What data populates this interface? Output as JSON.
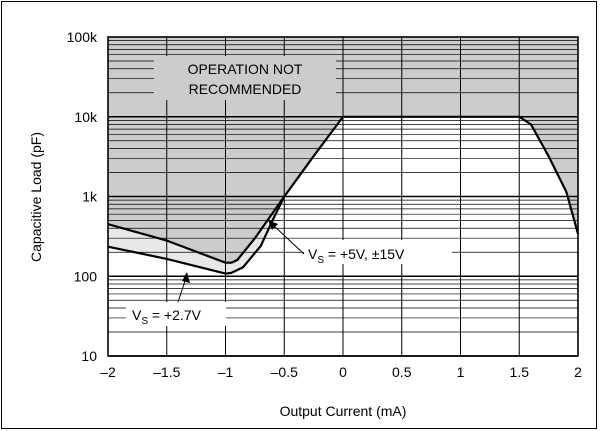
{
  "chart_data": {
    "type": "line",
    "xlabel": "Output Current (mA)",
    "ylabel": "Capacitive Load (pF)",
    "xlim": [
      -2,
      2
    ],
    "ylim": [
      10,
      100000
    ],
    "yscale": "log",
    "grid": true,
    "xticks": [
      -2,
      -1.5,
      -1,
      -0.5,
      0,
      0.5,
      1,
      1.5,
      2
    ],
    "xtick_labels": [
      "–2",
      "–1.5",
      "–1",
      "–0.5",
      "0",
      "0.5",
      "1",
      "1.5",
      "2"
    ],
    "yticks": [
      10,
      100,
      1000,
      10000,
      100000
    ],
    "ytick_labels": [
      "10",
      "100",
      "1k",
      "10k",
      "100k"
    ],
    "region_label_line1": "OPERATION NOT",
    "region_label_line2": "RECOMMENDED",
    "series": [
      {
        "name": "V_S = +5V, ±15V",
        "label_prefix": "V",
        "label_sub": "S",
        "label_suffix": " = +5V, ±15V",
        "points": [
          [
            -2,
            450
          ],
          [
            -1.5,
            280
          ],
          [
            -1.0,
            148
          ],
          [
            -0.95,
            148
          ],
          [
            -0.9,
            160
          ],
          [
            -0.75,
            300
          ],
          [
            -0.5,
            1000
          ],
          [
            -0.25,
            3200
          ],
          [
            0,
            10000
          ],
          [
            1.5,
            10000
          ],
          [
            1.6,
            8000
          ],
          [
            1.75,
            3200
          ],
          [
            1.9,
            1150
          ],
          [
            2,
            340
          ]
        ]
      },
      {
        "name": "V_S = +2.7V",
        "label_prefix": "V",
        "label_sub": "S",
        "label_suffix": " = +2.7V",
        "points": [
          [
            -2,
            235
          ],
          [
            -1.5,
            165
          ],
          [
            -1.0,
            108
          ],
          [
            -0.95,
            110
          ],
          [
            -0.85,
            130
          ],
          [
            -0.7,
            240
          ],
          [
            -0.6,
            500
          ],
          [
            -0.5,
            1000
          ]
        ]
      }
    ],
    "colors": {
      "not_recommended": "#cccccc",
      "between_curves": "#e8e8e8",
      "lines": "#000000",
      "grid": "#000000"
    }
  }
}
